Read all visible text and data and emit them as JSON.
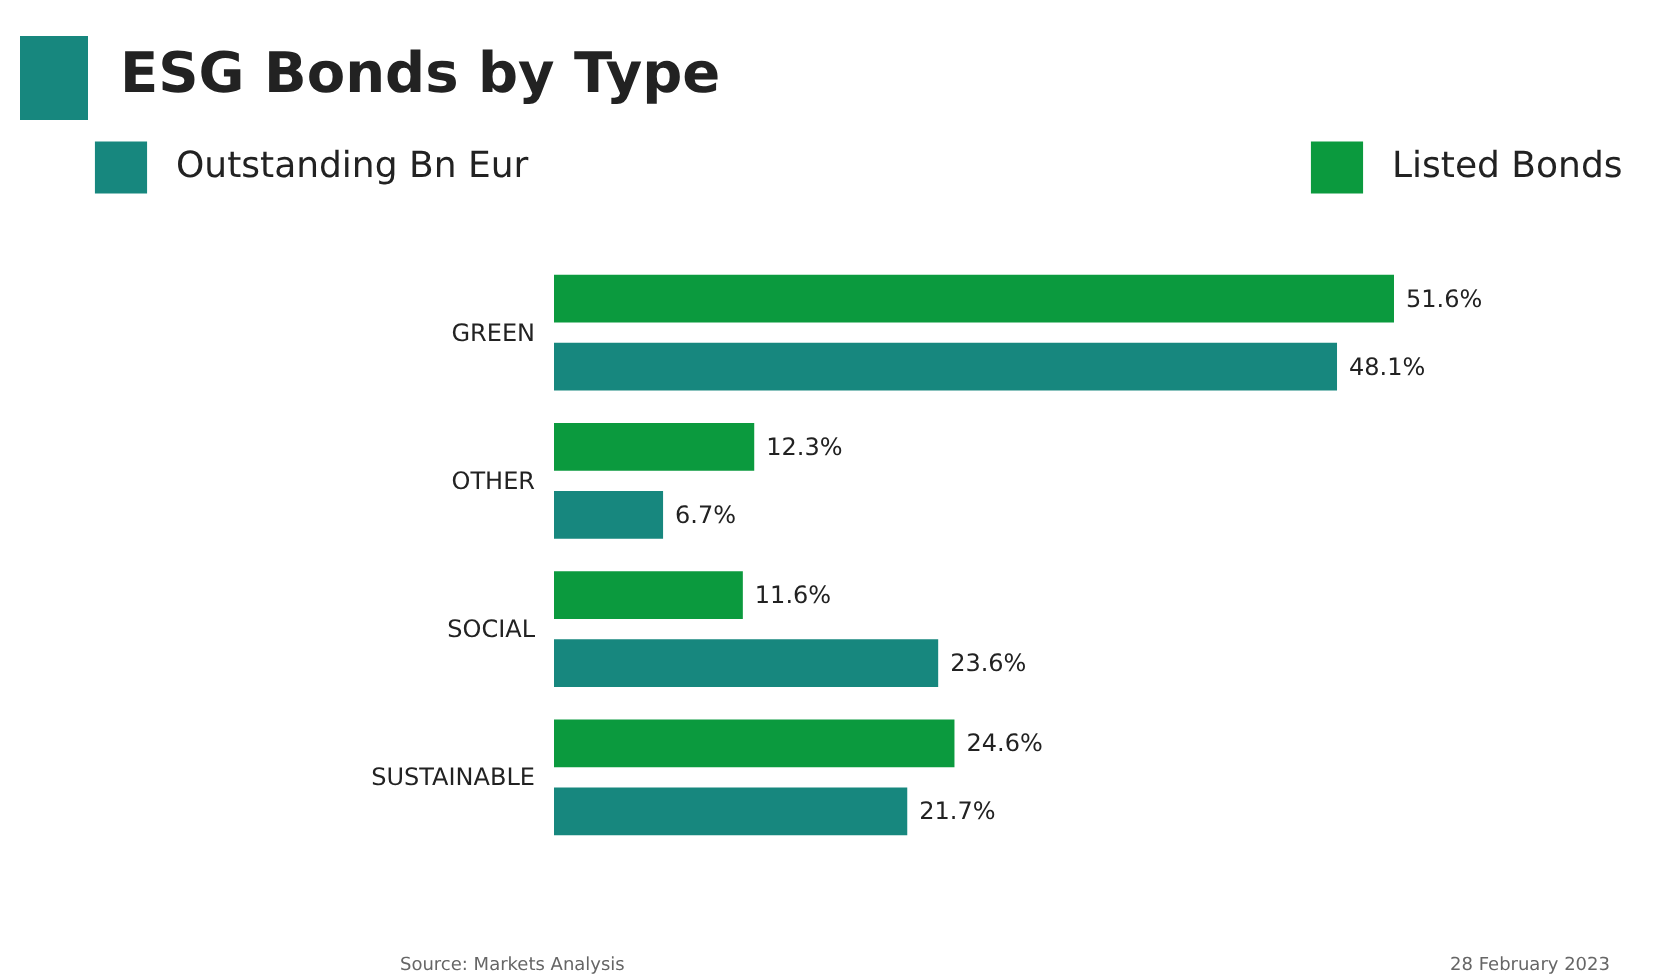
{
  "chart_data": {
    "type": "bar",
    "orientation": "horizontal",
    "title": "ESG Bonds by Type",
    "categories": [
      "GREEN",
      "OTHER",
      "SOCIAL",
      "SUSTAINABLE"
    ],
    "series": [
      {
        "name": "Outstanding Bn Eur",
        "color": "#17877e",
        "values": [
          48.1,
          6.7,
          23.6,
          21.7
        ],
        "value_labels": [
          "48.1%",
          "6.7%",
          "23.6%",
          "21.7%"
        ]
      },
      {
        "name": "Listed Bonds",
        "color": "#0b9a3e",
        "values": [
          51.6,
          12.3,
          11.6,
          24.6
        ],
        "value_labels": [
          "51.6%",
          "12.3%",
          "11.6%",
          "24.6%"
        ]
      }
    ],
    "legend": "top",
    "annotations": [
      "Source: Markets Analysis",
      "28 February 2023"
    ]
  }
}
